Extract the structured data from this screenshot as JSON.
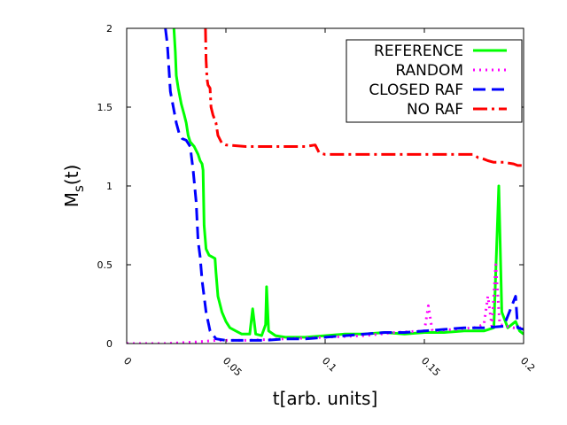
{
  "chart_data": {
    "type": "line",
    "xlabel": "t[arb. units]",
    "ylabel_main": "M",
    "ylabel_sub": "s",
    "ylabel_tail": "(t)",
    "xlim": [
      0,
      0.2
    ],
    "ylim": [
      0,
      2
    ],
    "x_ticks": [
      {
        "value": 0,
        "label": "0"
      },
      {
        "value": 0.05,
        "label": "0.05"
      },
      {
        "value": 0.1,
        "label": "0.1"
      },
      {
        "value": 0.15,
        "label": "0.15"
      },
      {
        "value": 0.2,
        "label": "0.2"
      }
    ],
    "y_ticks": [
      {
        "value": 0,
        "label": "0"
      },
      {
        "value": 0.5,
        "label": "0.5"
      },
      {
        "value": 1,
        "label": "1"
      },
      {
        "value": 1.5,
        "label": "1.5"
      },
      {
        "value": 2,
        "label": "2"
      }
    ],
    "grid": false,
    "legend_position": "top-right",
    "series": [
      {
        "name": "REFERENCE",
        "color": "#00ff00",
        "dash": "solid",
        "points": [
          [
            0.0238,
            2.0
          ],
          [
            0.0245,
            1.85
          ],
          [
            0.025,
            1.7
          ],
          [
            0.026,
            1.62
          ],
          [
            0.0275,
            1.52
          ],
          [
            0.029,
            1.45
          ],
          [
            0.03,
            1.4
          ],
          [
            0.031,
            1.32
          ],
          [
            0.032,
            1.28
          ],
          [
            0.034,
            1.25
          ],
          [
            0.036,
            1.2
          ],
          [
            0.037,
            1.16
          ],
          [
            0.038,
            1.14
          ],
          [
            0.0385,
            1.1
          ],
          [
            0.039,
            0.75
          ],
          [
            0.04,
            0.6
          ],
          [
            0.0415,
            0.56
          ],
          [
            0.043,
            0.55
          ],
          [
            0.0445,
            0.54
          ],
          [
            0.045,
            0.45
          ],
          [
            0.046,
            0.3
          ],
          [
            0.048,
            0.2
          ],
          [
            0.05,
            0.14
          ],
          [
            0.052,
            0.1
          ],
          [
            0.055,
            0.08
          ],
          [
            0.058,
            0.06
          ],
          [
            0.062,
            0.06
          ],
          [
            0.0635,
            0.22
          ],
          [
            0.065,
            0.06
          ],
          [
            0.068,
            0.05
          ],
          [
            0.07,
            0.12
          ],
          [
            0.0705,
            0.36
          ],
          [
            0.0715,
            0.08
          ],
          [
            0.075,
            0.05
          ],
          [
            0.08,
            0.04
          ],
          [
            0.09,
            0.04
          ],
          [
            0.1,
            0.05
          ],
          [
            0.11,
            0.06
          ],
          [
            0.12,
            0.06
          ],
          [
            0.13,
            0.07
          ],
          [
            0.14,
            0.06
          ],
          [
            0.15,
            0.07
          ],
          [
            0.16,
            0.07
          ],
          [
            0.17,
            0.08
          ],
          [
            0.18,
            0.08
          ],
          [
            0.185,
            0.1
          ],
          [
            0.1875,
            1.0
          ],
          [
            0.189,
            0.2
          ],
          [
            0.192,
            0.1
          ],
          [
            0.196,
            0.14
          ],
          [
            0.198,
            0.08
          ],
          [
            0.2,
            0.06
          ]
        ]
      },
      {
        "name": "RANDOM",
        "color": "#ff00ff",
        "dash": "2,5",
        "points": [
          [
            0.0,
            0.0
          ],
          [
            0.02,
            0.0
          ],
          [
            0.035,
            0.01
          ],
          [
            0.045,
            0.02
          ],
          [
            0.06,
            0.02
          ],
          [
            0.08,
            0.03
          ],
          [
            0.1,
            0.04
          ],
          [
            0.12,
            0.05
          ],
          [
            0.135,
            0.07
          ],
          [
            0.15,
            0.08
          ],
          [
            0.152,
            0.24
          ],
          [
            0.154,
            0.08
          ],
          [
            0.165,
            0.09
          ],
          [
            0.175,
            0.1
          ],
          [
            0.18,
            0.12
          ],
          [
            0.182,
            0.3
          ],
          [
            0.184,
            0.11
          ],
          [
            0.186,
            0.5
          ],
          [
            0.188,
            0.12
          ],
          [
            0.195,
            0.1
          ],
          [
            0.2,
            0.1
          ]
        ]
      },
      {
        "name": "CLOSED RAF",
        "color": "#0000ff",
        "dash": "14,7",
        "points": [
          [
            0.0195,
            2.0
          ],
          [
            0.0205,
            1.9
          ],
          [
            0.022,
            1.6
          ],
          [
            0.025,
            1.4
          ],
          [
            0.0265,
            1.33
          ],
          [
            0.028,
            1.3
          ],
          [
            0.03,
            1.29
          ],
          [
            0.032,
            1.25
          ],
          [
            0.0335,
            1.1
          ],
          [
            0.035,
            0.9
          ],
          [
            0.036,
            0.65
          ],
          [
            0.037,
            0.55
          ],
          [
            0.038,
            0.4
          ],
          [
            0.04,
            0.2
          ],
          [
            0.042,
            0.08
          ],
          [
            0.045,
            0.03
          ],
          [
            0.05,
            0.02
          ],
          [
            0.06,
            0.02
          ],
          [
            0.07,
            0.02
          ],
          [
            0.08,
            0.03
          ],
          [
            0.09,
            0.03
          ],
          [
            0.1,
            0.04
          ],
          [
            0.11,
            0.05
          ],
          [
            0.12,
            0.06
          ],
          [
            0.13,
            0.07
          ],
          [
            0.14,
            0.07
          ],
          [
            0.15,
            0.08
          ],
          [
            0.16,
            0.09
          ],
          [
            0.17,
            0.1
          ],
          [
            0.18,
            0.1
          ],
          [
            0.19,
            0.11
          ],
          [
            0.196,
            0.3
          ],
          [
            0.197,
            0.1
          ],
          [
            0.2,
            0.09
          ]
        ]
      },
      {
        "name": "NO RAF",
        "color": "#ff0000",
        "dash": "16,5,3,5",
        "points": [
          [
            0.0397,
            2.0
          ],
          [
            0.04,
            1.8
          ],
          [
            0.0405,
            1.68
          ],
          [
            0.041,
            1.64
          ],
          [
            0.042,
            1.62
          ],
          [
            0.0425,
            1.5
          ],
          [
            0.0435,
            1.45
          ],
          [
            0.045,
            1.4
          ],
          [
            0.046,
            1.32
          ],
          [
            0.048,
            1.27
          ],
          [
            0.05,
            1.26
          ],
          [
            0.06,
            1.25
          ],
          [
            0.07,
            1.25
          ],
          [
            0.08,
            1.25
          ],
          [
            0.09,
            1.25
          ],
          [
            0.095,
            1.26
          ],
          [
            0.097,
            1.21
          ],
          [
            0.1,
            1.2
          ],
          [
            0.11,
            1.2
          ],
          [
            0.12,
            1.2
          ],
          [
            0.13,
            1.2
          ],
          [
            0.14,
            1.2
          ],
          [
            0.15,
            1.2
          ],
          [
            0.16,
            1.2
          ],
          [
            0.17,
            1.2
          ],
          [
            0.175,
            1.2
          ],
          [
            0.177,
            1.18
          ],
          [
            0.18,
            1.17
          ],
          [
            0.182,
            1.16
          ],
          [
            0.185,
            1.15
          ],
          [
            0.19,
            1.15
          ],
          [
            0.195,
            1.14
          ],
          [
            0.197,
            1.13
          ],
          [
            0.2,
            1.13
          ]
        ]
      }
    ]
  }
}
